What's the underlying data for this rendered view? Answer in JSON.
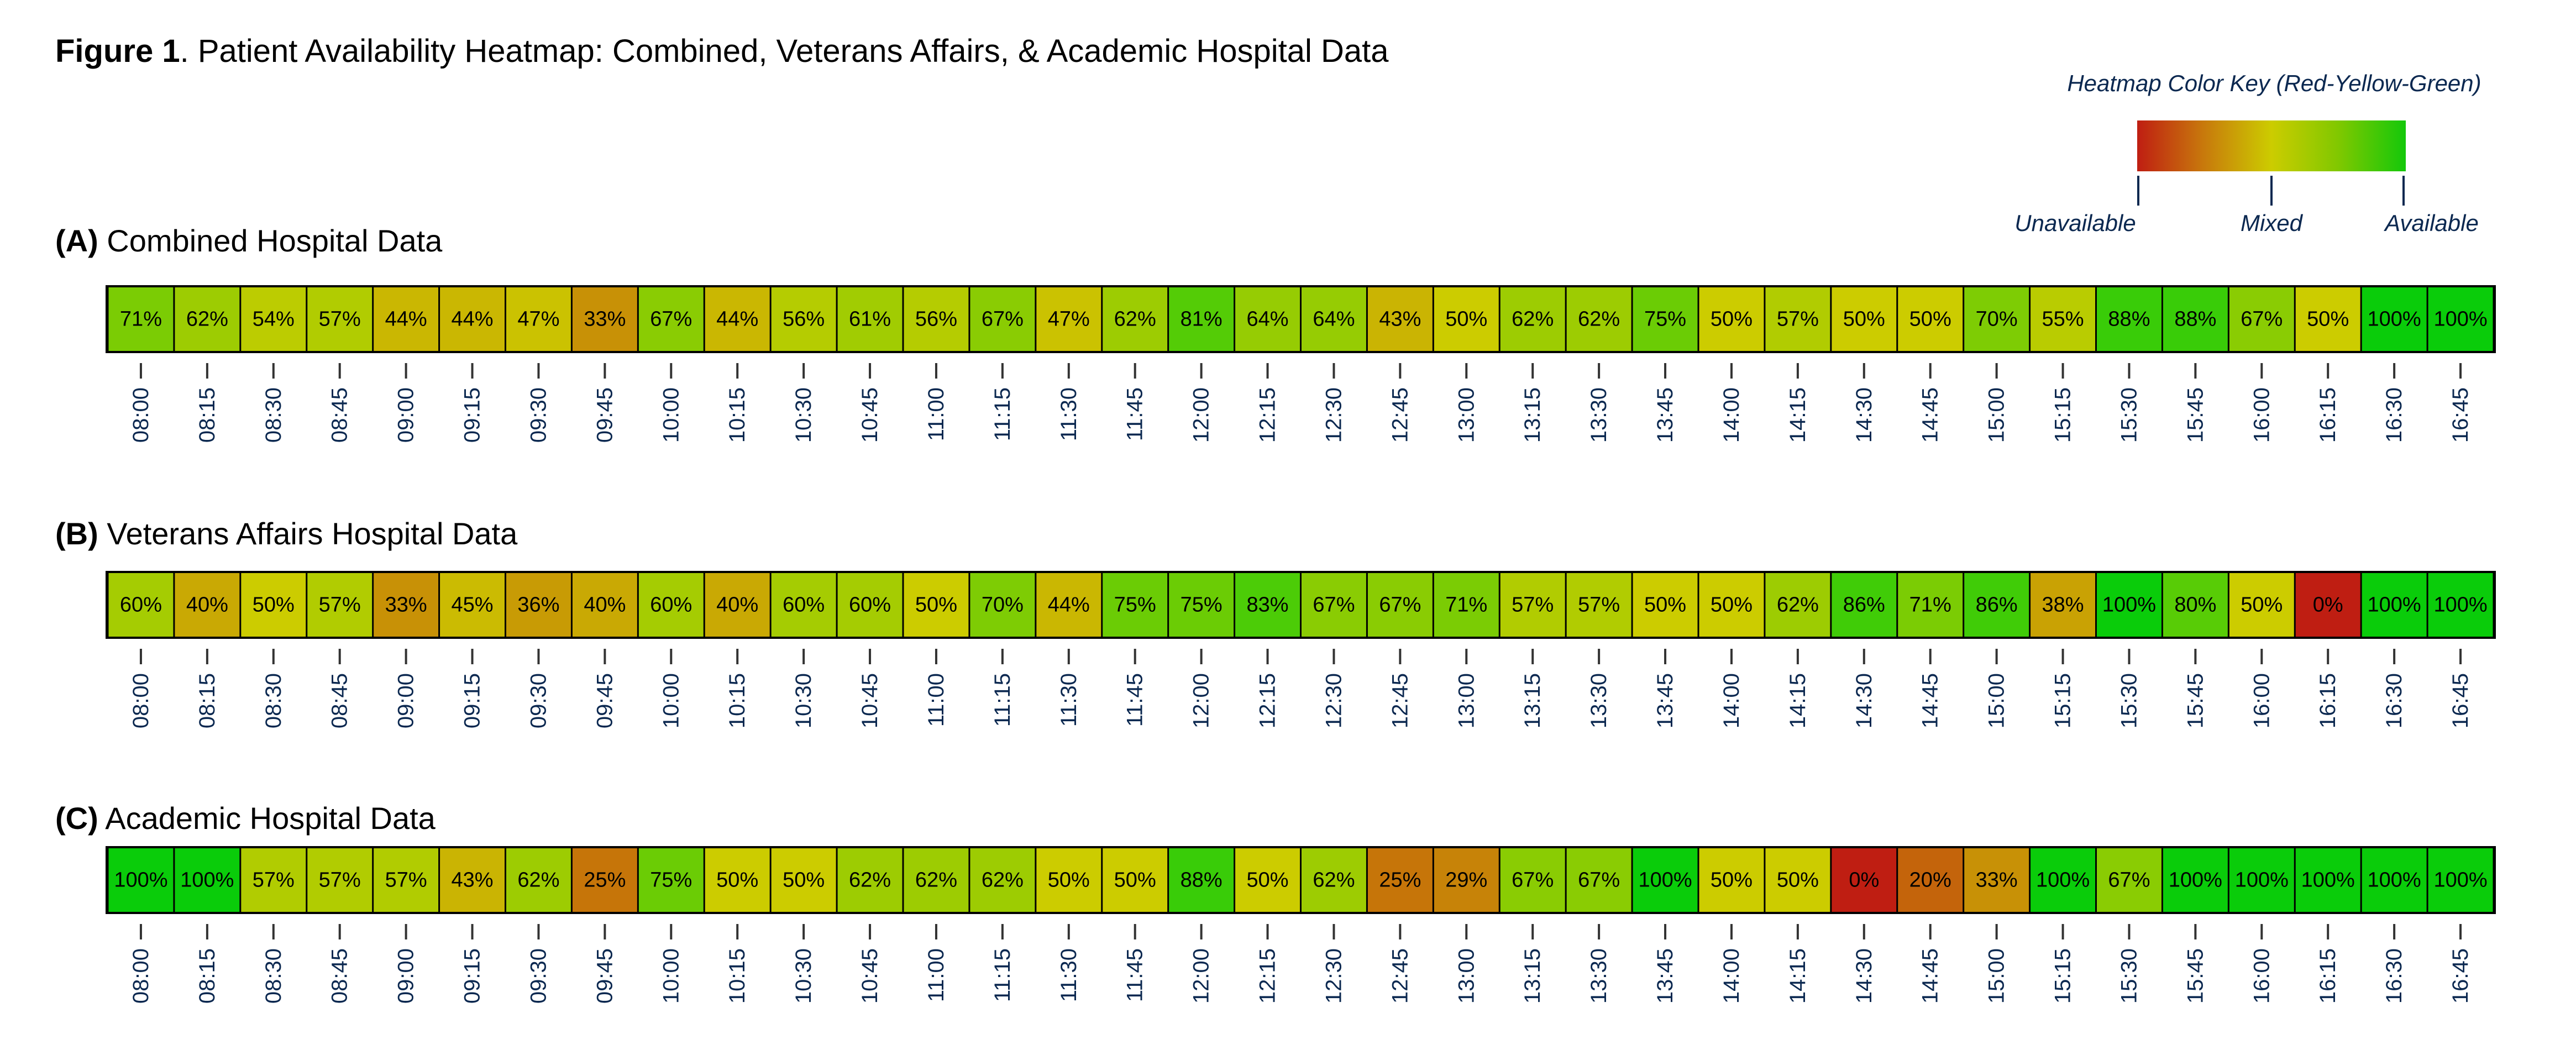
{
  "title": {
    "bold": "Figure 1",
    "rest": ". Patient Availability Heatmap: Combined, Veterans Affairs, & Academic Hospital Data"
  },
  "legend": {
    "title": "Heatmap Color Key (Red-Yellow-Green)",
    "labels": [
      "Unavailable",
      "Mixed",
      "Available"
    ],
    "colors": {
      "low": "#bf1e12",
      "mid": "#cccc00",
      "high": "#0acc0a"
    }
  },
  "chart_data": [
    {
      "type": "heatmap",
      "panel": "(A)",
      "title": "Combined Hospital Data",
      "x": [
        "08:00",
        "08:15",
        "08:30",
        "08:45",
        "09:00",
        "09:15",
        "09:30",
        "09:45",
        "10:00",
        "10:15",
        "10:30",
        "10:45",
        "11:00",
        "11:15",
        "11:30",
        "11:45",
        "12:00",
        "12:15",
        "12:30",
        "12:45",
        "13:00",
        "13:15",
        "13:30",
        "13:45",
        "14:00",
        "14:15",
        "14:30",
        "14:45",
        "15:00",
        "15:15",
        "15:30",
        "15:45",
        "16:00",
        "16:15",
        "16:30",
        "16:45"
      ],
      "values": [
        71,
        62,
        54,
        57,
        44,
        44,
        47,
        33,
        67,
        44,
        56,
        61,
        56,
        67,
        47,
        62,
        81,
        64,
        64,
        43,
        50,
        62,
        62,
        75,
        50,
        57,
        50,
        50,
        70,
        55,
        88,
        88,
        67,
        50,
        100,
        100
      ],
      "unit": "%",
      "range": [
        0,
        100
      ]
    },
    {
      "type": "heatmap",
      "panel": "(B)",
      "title": "Veterans Affairs Hospital Data",
      "x": [
        "08:00",
        "08:15",
        "08:30",
        "08:45",
        "09:00",
        "09:15",
        "09:30",
        "09:45",
        "10:00",
        "10:15",
        "10:30",
        "10:45",
        "11:00",
        "11:15",
        "11:30",
        "11:45",
        "12:00",
        "12:15",
        "12:30",
        "12:45",
        "13:00",
        "13:15",
        "13:30",
        "13:45",
        "14:00",
        "14:15",
        "14:30",
        "14:45",
        "15:00",
        "15:15",
        "15:30",
        "15:45",
        "16:00",
        "16:15",
        "16:30",
        "16:45"
      ],
      "values": [
        60,
        40,
        50,
        57,
        33,
        45,
        36,
        40,
        60,
        40,
        60,
        60,
        50,
        70,
        44,
        75,
        75,
        83,
        67,
        67,
        71,
        57,
        57,
        50,
        50,
        62,
        86,
        71,
        86,
        38,
        100,
        80,
        50,
        0,
        100,
        100
      ],
      "unit": "%",
      "range": [
        0,
        100
      ]
    },
    {
      "type": "heatmap",
      "panel": "(C)",
      "title": "Academic Hospital Data",
      "x": [
        "08:00",
        "08:15",
        "08:30",
        "08:45",
        "09:00",
        "09:15",
        "09:30",
        "09:45",
        "10:00",
        "10:15",
        "10:30",
        "10:45",
        "11:00",
        "11:15",
        "11:30",
        "11:45",
        "12:00",
        "12:15",
        "12:30",
        "12:45",
        "13:00",
        "13:15",
        "13:30",
        "13:45",
        "14:00",
        "14:15",
        "14:30",
        "14:45",
        "15:00",
        "15:15",
        "15:30",
        "15:45",
        "16:00",
        "16:15",
        "16:30",
        "16:45"
      ],
      "values": [
        100,
        100,
        57,
        57,
        57,
        43,
        62,
        25,
        75,
        50,
        50,
        62,
        62,
        62,
        50,
        50,
        88,
        50,
        62,
        25,
        29,
        67,
        67,
        100,
        50,
        50,
        0,
        20,
        33,
        100,
        67,
        100,
        100,
        100,
        100,
        100
      ],
      "unit": "%",
      "range": [
        0,
        100
      ]
    }
  ]
}
